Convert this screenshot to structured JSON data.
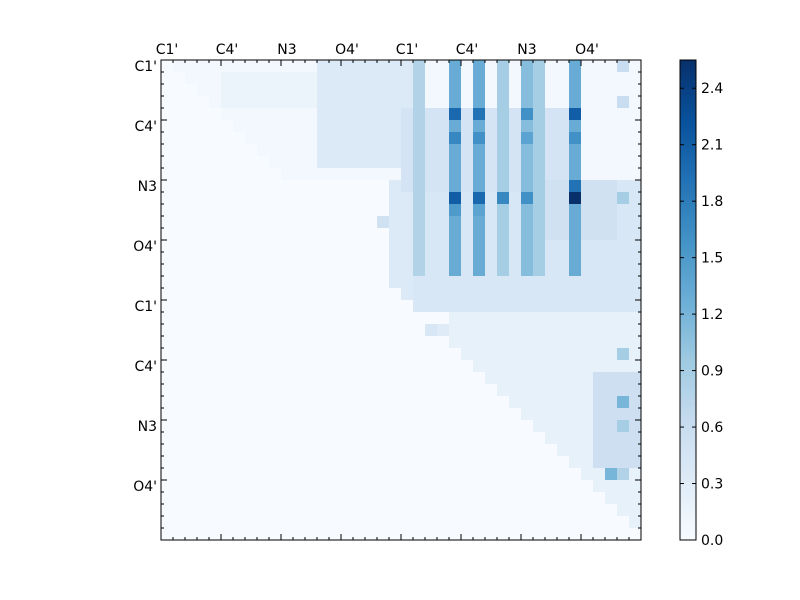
{
  "chart_data": {
    "type": "heatmap",
    "title": "",
    "xlabel": "",
    "ylabel": "",
    "x_tick_labels": [
      "C1'",
      "C4'",
      "N3",
      "O4'",
      "C1'",
      "C4'",
      "N3",
      "O4'"
    ],
    "y_tick_labels": [
      "C1'",
      "C4'",
      "N3",
      "O4'",
      "C1'",
      "C4'",
      "N3",
      "O4'"
    ],
    "tick_interval": 5,
    "grid_size": 40,
    "colormap": "Blues",
    "colormap_stops": [
      "#f7fbff",
      "#deebf7",
      "#c6dbef",
      "#9ecae1",
      "#6baed6",
      "#4292c6",
      "#2171b5",
      "#08519c",
      "#08306b"
    ],
    "vmin": 0.0,
    "vmax": 2.55,
    "colorbar_ticks": [
      {
        "value": 0.0,
        "label": "0.0"
      },
      {
        "value": 0.3,
        "label": "0.3"
      },
      {
        "value": 0.6,
        "label": "0.6"
      },
      {
        "value": 0.9,
        "label": "0.9"
      },
      {
        "value": 1.2,
        "label": "1.2"
      },
      {
        "value": 1.5,
        "label": "1.5"
      },
      {
        "value": 1.8,
        "label": "1.8"
      },
      {
        "value": 2.1,
        "label": "2.1"
      },
      {
        "value": 2.4,
        "label": "2.4"
      }
    ],
    "regions": [
      {
        "rows": [
          0,
          9
        ],
        "cols": [
          1,
          39
        ],
        "value": 0.05
      },
      {
        "rows": [
          1,
          3
        ],
        "cols": [
          5,
          13
        ],
        "value": 0.15
      },
      {
        "rows": [
          0,
          8
        ],
        "cols": [
          13,
          20
        ],
        "value": 0.35
      },
      {
        "rows": [
          10,
          19
        ],
        "cols": [
          19,
          39
        ],
        "value": 0.35
      },
      {
        "rows": [
          20,
          39
        ],
        "cols": [
          24,
          39
        ],
        "value": 0.2
      },
      {
        "rows": [
          26,
          33
        ],
        "cols": [
          36,
          39
        ],
        "value": 0.55
      },
      {
        "rows": [
          4,
          10
        ],
        "cols": [
          20,
          34
        ],
        "value": 0.45
      },
      {
        "rows": [
          10,
          20
        ],
        "cols": [
          21,
          39
        ],
        "value": 0.4
      },
      {
        "rows": [
          10,
          14
        ],
        "cols": [
          32,
          37
        ],
        "value": 0.5
      }
    ],
    "column_bands": [
      {
        "col": 21,
        "rows": [
          0,
          17
        ],
        "value": 0.8
      },
      {
        "col": 24,
        "rows": [
          0,
          17
        ],
        "value": 1.3
      },
      {
        "col": 26,
        "rows": [
          0,
          17
        ],
        "value": 1.3
      },
      {
        "col": 28,
        "rows": [
          0,
          17
        ],
        "value": 0.9
      },
      {
        "col": 30,
        "rows": [
          0,
          17
        ],
        "value": 1.1
      },
      {
        "col": 31,
        "rows": [
          0,
          17
        ],
        "value": 0.9
      },
      {
        "col": 34,
        "rows": [
          0,
          17
        ],
        "value": 1.3
      }
    ],
    "cells": [
      {
        "row": 4,
        "col": 24,
        "value": 2.0
      },
      {
        "row": 4,
        "col": 26,
        "value": 1.9
      },
      {
        "row": 4,
        "col": 30,
        "value": 1.6
      },
      {
        "row": 4,
        "col": 34,
        "value": 2.1
      },
      {
        "row": 6,
        "col": 24,
        "value": 1.7
      },
      {
        "row": 6,
        "col": 26,
        "value": 1.6
      },
      {
        "row": 6,
        "col": 30,
        "value": 1.4
      },
      {
        "row": 6,
        "col": 34,
        "value": 1.6
      },
      {
        "row": 11,
        "col": 24,
        "value": 2.1
      },
      {
        "row": 11,
        "col": 26,
        "value": 2.0
      },
      {
        "row": 11,
        "col": 28,
        "value": 1.7
      },
      {
        "row": 11,
        "col": 30,
        "value": 1.6
      },
      {
        "row": 11,
        "col": 34,
        "value": 2.55
      },
      {
        "row": 10,
        "col": 34,
        "value": 1.9
      },
      {
        "row": 12,
        "col": 24,
        "value": 1.5
      },
      {
        "row": 12,
        "col": 26,
        "value": 1.4
      },
      {
        "row": 0,
        "col": 38,
        "value": 0.6
      },
      {
        "row": 3,
        "col": 38,
        "value": 0.6
      },
      {
        "row": 11,
        "col": 38,
        "value": 0.9
      },
      {
        "row": 24,
        "col": 38,
        "value": 0.9
      },
      {
        "row": 28,
        "col": 38,
        "value": 1.2
      },
      {
        "row": 30,
        "col": 38,
        "value": 0.9
      },
      {
        "row": 34,
        "col": 38,
        "value": 0.8
      },
      {
        "row": 34,
        "col": 37,
        "value": 1.2
      },
      {
        "row": 22,
        "col": 22,
        "value": 0.4
      },
      {
        "row": 22,
        "col": 23,
        "value": 0.3
      },
      {
        "row": 13,
        "col": 18,
        "value": 0.5
      }
    ]
  }
}
